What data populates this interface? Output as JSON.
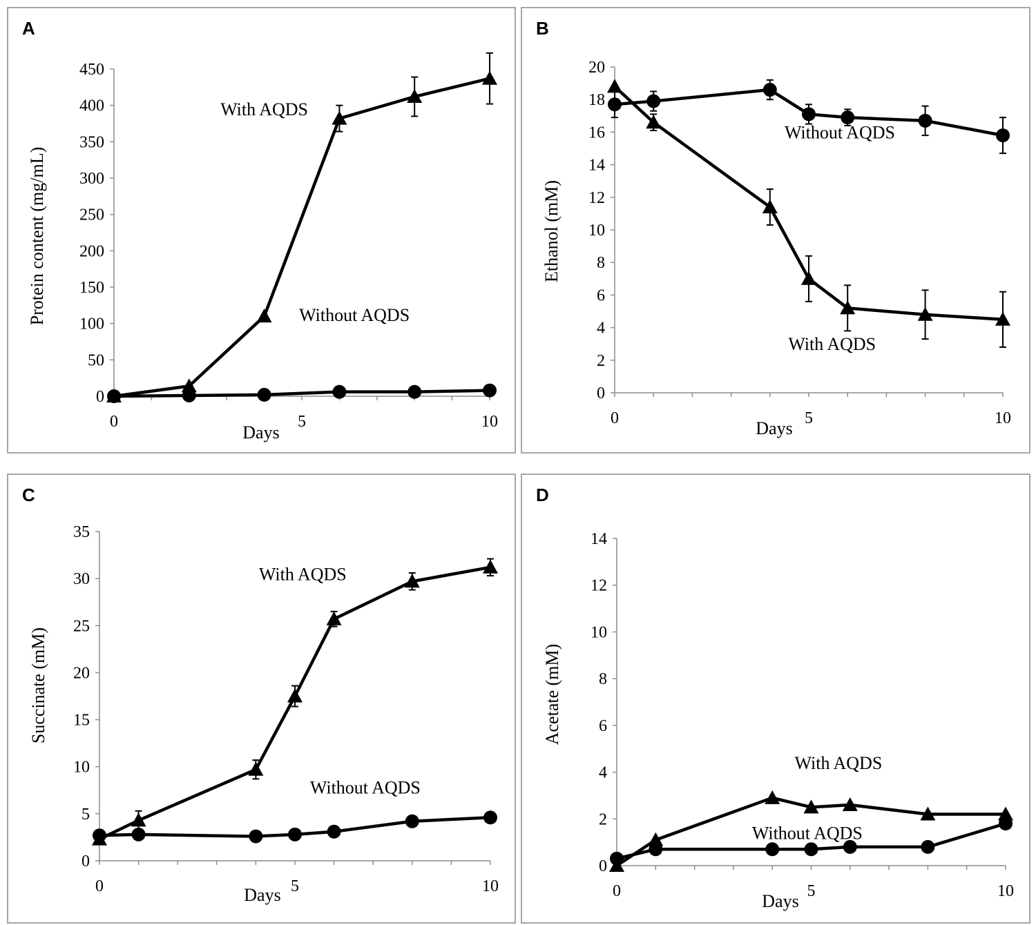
{
  "chart_data": [
    {
      "id": "A",
      "panel_label": "A",
      "type": "line",
      "xlabel": "Days",
      "ylabel": "Protein content (mg/mL)",
      "xlim": [
        0,
        10
      ],
      "ylim": [
        0,
        450
      ],
      "xticks": [
        "0",
        "5",
        "10"
      ],
      "yticks": [
        "0",
        "50",
        "100",
        "150",
        "200",
        "250",
        "300",
        "350",
        "400",
        "450"
      ],
      "series": [
        {
          "name": "With AQDS",
          "marker": "triangle",
          "x": [
            0,
            2,
            4,
            6,
            8,
            10
          ],
          "y": [
            0,
            14,
            110,
            382,
            412,
            437
          ],
          "err": [
            0,
            0,
            0,
            18,
            27,
            35
          ]
        },
        {
          "name": "Without AQDS",
          "marker": "circle",
          "x": [
            0,
            2,
            4,
            6,
            8,
            10
          ],
          "y": [
            0,
            1,
            2,
            6,
            6,
            8
          ],
          "err": [
            0,
            0,
            0,
            0,
            0,
            0
          ]
        }
      ],
      "annotations": [
        {
          "text": "With AQDS",
          "series": "With AQDS",
          "x": 4.0,
          "y": 395
        },
        {
          "text": "Without AQDS",
          "series": "Without AQDS",
          "x": 6.4,
          "y": 112
        }
      ]
    },
    {
      "id": "B",
      "panel_label": "B",
      "type": "line",
      "xlabel": "Days",
      "ylabel": "Ethanol (mM)",
      "xlim": [
        0,
        10
      ],
      "ylim": [
        0,
        20
      ],
      "xticks": [
        "0",
        "5",
        "10"
      ],
      "yticks": [
        "0",
        "2",
        "4",
        "6",
        "8",
        "10",
        "12",
        "14",
        "16",
        "18",
        "20"
      ],
      "series": [
        {
          "name": "With AQDS",
          "marker": "triangle",
          "x": [
            0,
            1,
            4,
            5,
            6,
            8,
            10
          ],
          "y": [
            18.8,
            16.6,
            11.4,
            7.0,
            5.2,
            4.8,
            4.5
          ],
          "err": [
            0,
            0.5,
            1.1,
            1.4,
            1.4,
            1.5,
            1.7
          ]
        },
        {
          "name": "Without AQDS",
          "marker": "circle",
          "x": [
            0,
            1,
            4,
            5,
            6,
            8,
            10
          ],
          "y": [
            17.7,
            17.9,
            18.6,
            17.1,
            16.9,
            16.7,
            15.8
          ],
          "err": [
            0.8,
            0.6,
            0.6,
            0.6,
            0.5,
            0.9,
            1.1
          ]
        }
      ],
      "annotations": [
        {
          "text": "Without AQDS",
          "series": "Without AQDS",
          "x": 5.8,
          "y": 16.0
        },
        {
          "text": "With AQDS",
          "series": "With AQDS",
          "x": 5.6,
          "y": 3.0
        }
      ]
    },
    {
      "id": "C",
      "panel_label": "C",
      "type": "line",
      "xlabel": "Days",
      "ylabel": "Succinate (mM)",
      "xlim": [
        0,
        10
      ],
      "ylim": [
        0,
        35
      ],
      "xticks": [
        "0",
        "5",
        "10"
      ],
      "yticks": [
        "0",
        "5",
        "10",
        "15",
        "20",
        "25",
        "30",
        "35"
      ],
      "series": [
        {
          "name": "With AQDS",
          "marker": "triangle",
          "x": [
            0,
            1,
            4,
            5,
            6,
            8,
            10
          ],
          "y": [
            2.3,
            4.3,
            9.7,
            17.5,
            25.7,
            29.7,
            31.2
          ],
          "err": [
            0,
            1.0,
            1.0,
            1.1,
            0.8,
            0.9,
            0.9
          ]
        },
        {
          "name": "Without AQDS",
          "marker": "circle",
          "x": [
            0,
            1,
            4,
            5,
            6,
            8,
            10
          ],
          "y": [
            2.7,
            2.8,
            2.6,
            2.8,
            3.1,
            4.2,
            4.6
          ],
          "err": [
            0,
            0,
            0,
            0,
            0,
            0,
            0
          ]
        }
      ],
      "annotations": [
        {
          "text": "With AQDS",
          "series": "With AQDS",
          "x": 5.2,
          "y": 30.5
        },
        {
          "text": "Without AQDS",
          "series": "Without AQDS",
          "x": 6.8,
          "y": 7.8
        }
      ]
    },
    {
      "id": "D",
      "panel_label": "D",
      "type": "line",
      "xlabel": "Days",
      "ylabel": "Acetate (mM)",
      "xlim": [
        0,
        10
      ],
      "ylim": [
        0,
        14
      ],
      "xticks": [
        "0",
        "5",
        "10"
      ],
      "yticks": [
        "0",
        "2",
        "4",
        "6",
        "8",
        "10",
        "12",
        "14"
      ],
      "series": [
        {
          "name": "With AQDS",
          "marker": "triangle",
          "x": [
            0,
            1,
            4,
            5,
            6,
            8,
            10
          ],
          "y": [
            0,
            1.1,
            2.9,
            2.5,
            2.6,
            2.2,
            2.2
          ],
          "err": [
            0,
            0,
            0,
            0,
            0,
            0,
            0
          ]
        },
        {
          "name": "Without AQDS",
          "marker": "circle",
          "x": [
            0,
            1,
            4,
            5,
            6,
            8,
            10
          ],
          "y": [
            0.3,
            0.7,
            0.7,
            0.7,
            0.8,
            0.8,
            1.8
          ],
          "err": [
            0,
            0,
            0,
            0,
            0,
            0,
            0
          ]
        }
      ],
      "annotations": [
        {
          "text": "With AQDS",
          "series": "With AQDS",
          "x": 5.7,
          "y": 4.4
        },
        {
          "text": "Without AQDS",
          "series": "Without AQDS",
          "x": 4.9,
          "y": 1.4
        }
      ]
    }
  ]
}
